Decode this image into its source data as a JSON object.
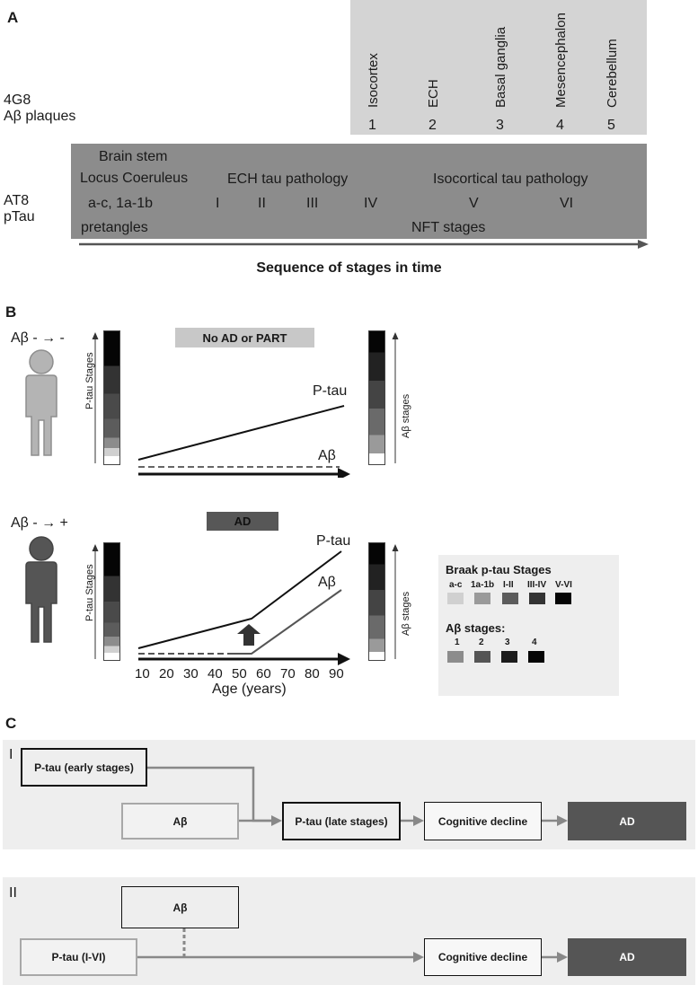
{
  "panel_a": {
    "letter": "A",
    "plaque_marker_line1": "4G8",
    "plaque_marker_line2": "Aβ plaques",
    "tau_marker_line1": "AT8",
    "tau_marker_line2": "pTau",
    "regions": [
      {
        "name": "Isocortex",
        "number": "1"
      },
      {
        "name": "ECH",
        "number": "2"
      },
      {
        "name": "Basal ganglia",
        "number": "3"
      },
      {
        "name": "Mesencephalon",
        "number": "4"
      },
      {
        "name": "Cerebellum",
        "number": "5"
      }
    ],
    "brainstem_line1": "Brain stem",
    "brainstem_line2": "Locus Coeruleus",
    "brainstem_line3": "a-c, 1a-1b",
    "brainstem_line4": "pretangles",
    "ech_title": "ECH tau pathology",
    "isocortical_title": "Isocortical tau pathology",
    "stages": [
      "I",
      "II",
      "III",
      "IV",
      "V",
      "VI"
    ],
    "nft_label": "NFT stages",
    "sequence_label": "Sequence of stages in time"
  },
  "panel_b": {
    "letter": "B",
    "top_transition": "Aβ - → -",
    "top_banner": "No AD or PART",
    "bottom_transition": "Aβ - → +",
    "bottom_banner": "AD",
    "ptau_axis_label": "P-tau Stages",
    "abeta_axis_label": "Aβ stages",
    "ptau_curve_label": "P-tau",
    "abeta_curve_label": "Aβ",
    "age_ticks": [
      "10",
      "20",
      "30",
      "40",
      "50",
      "60",
      "70",
      "80",
      "90"
    ],
    "age_axis_label": "Age (years)",
    "legend": {
      "braak_title": "Braak p-tau Stages",
      "braak_items": [
        {
          "label": "a-c",
          "color": "#d0d0d0"
        },
        {
          "label": "1a-1b",
          "color": "#9a9a9a"
        },
        {
          "label": "I-II",
          "color": "#5c5c5c"
        },
        {
          "label": "III-IV",
          "color": "#333333"
        },
        {
          "label": "V-VI",
          "color": "#050505"
        }
      ],
      "abeta_title": "Aβ stages:",
      "abeta_items": [
        {
          "label": "1",
          "color": "#8c8c8c"
        },
        {
          "label": "2",
          "color": "#555555"
        },
        {
          "label": "3",
          "color": "#1c1c1c"
        },
        {
          "label": "4",
          "color": "#050505"
        }
      ]
    }
  },
  "panel_c": {
    "letter": "C",
    "scheme1": {
      "numeral": "I",
      "ptau_early": "P-tau (early stages)",
      "abeta": "Aβ",
      "ptau_late": "P-tau (late stages)",
      "cognitive": "Cognitive decline",
      "ad": "AD"
    },
    "scheme2": {
      "numeral": "II",
      "abeta": "Aβ",
      "ptau": "P-tau (I-VI)",
      "cognitive": "Cognitive decline",
      "ad": "AD"
    }
  }
}
